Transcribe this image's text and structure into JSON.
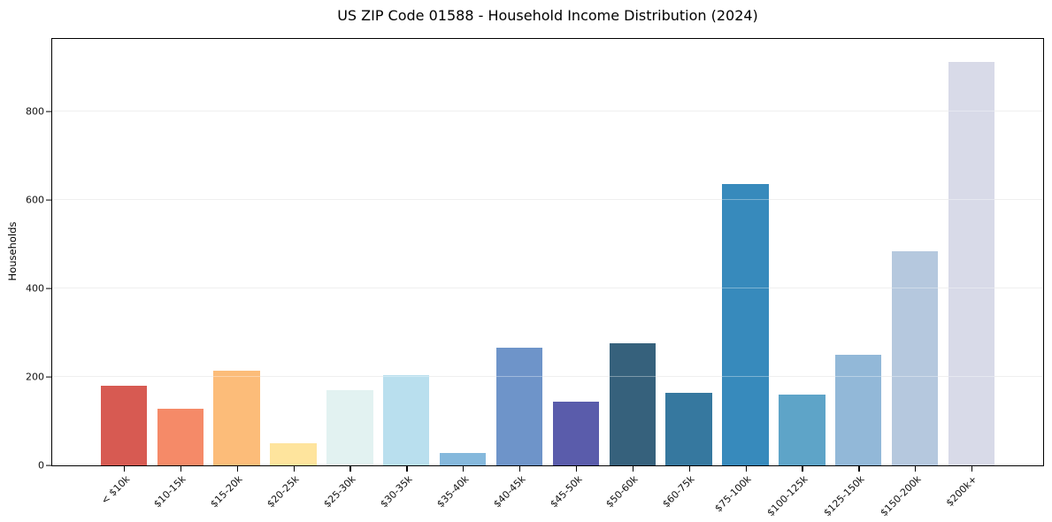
{
  "page": {
    "background_color": "#ffffff",
    "axis_color": "#000000",
    "gridline_color": "#e7e7e7",
    "tick_label_color": "#111111"
  },
  "chart_data": {
    "type": "bar",
    "title": "US ZIP Code 01588 - Household Income Distribution (2024)",
    "xlabel": "",
    "ylabel": "Households",
    "categories": [
      "< $10k",
      "$10-15k",
      "$15-20k",
      "$20-25k",
      "$25-30k",
      "$30-35k",
      "$35-40k",
      "$40-45k",
      "$45-50k",
      "$50-60k",
      "$60-75k",
      "$75-100k",
      "$100-125k",
      "$125-150k",
      "$150-200k",
      "$200k+"
    ],
    "values": [
      180,
      128,
      215,
      50,
      171,
      204,
      28,
      267,
      144,
      277,
      165,
      636,
      161,
      251,
      485,
      913
    ],
    "bar_colors": [
      "#d75a52",
      "#f58a68",
      "#fcbc79",
      "#fee49d",
      "#e2f2f1",
      "#b9dfee",
      "#85b8dc",
      "#6e94c9",
      "#5a5cab",
      "#36617c",
      "#36789f",
      "#378abc",
      "#5ea4c8",
      "#92b8d8",
      "#b5c8de",
      "#d8dae8"
    ],
    "yticks": [
      0,
      200,
      400,
      600,
      800
    ],
    "ylim": [
      0,
      965
    ],
    "grid": "horizontal",
    "legend_position": "none",
    "x_tick_rotation_deg": 45
  }
}
